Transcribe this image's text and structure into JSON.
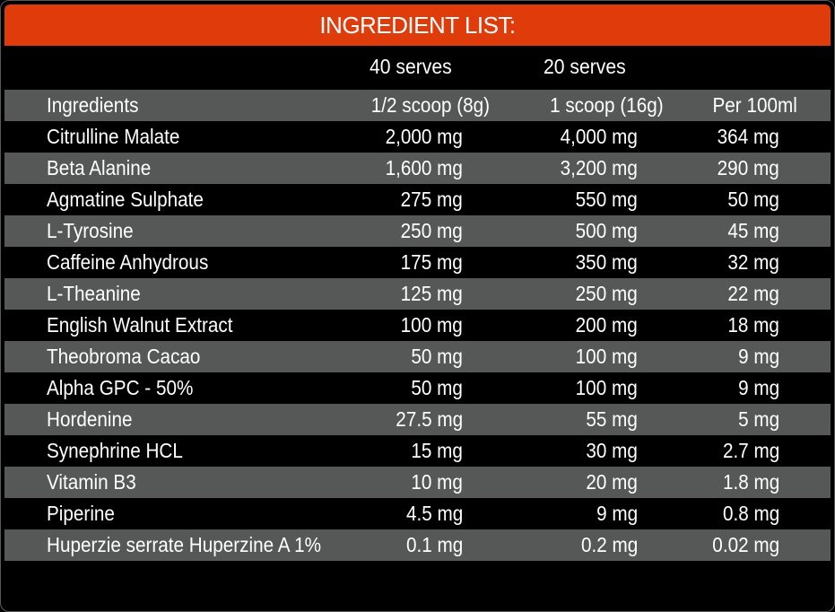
{
  "title": "INGREDIENT LIST:",
  "serves": {
    "col1": "40 serves",
    "col2": "20 serves"
  },
  "header": {
    "name": "Ingredients",
    "col1": "1/2 scoop (8g)",
    "col2": "1 scoop (16g)",
    "col3": "Per 100ml"
  },
  "rows": [
    {
      "name": "Citrulline Malate",
      "col1": "2,000 mg",
      "col2": "4,000 mg",
      "col3": "364 mg"
    },
    {
      "name": "Beta Alanine",
      "col1": "1,600 mg",
      "col2": "3,200 mg",
      "col3": "290 mg"
    },
    {
      "name": "Agmatine Sulphate",
      "col1": "275 mg",
      "col2": "550 mg",
      "col3": "50 mg"
    },
    {
      "name": "L-Tyrosine",
      "col1": "250 mg",
      "col2": "500 mg",
      "col3": "45 mg"
    },
    {
      "name": "Caffeine Anhydrous",
      "col1": "175 mg",
      "col2": "350 mg",
      "col3": "32 mg"
    },
    {
      "name": "L-Theanine",
      "col1": "125 mg",
      "col2": "250 mg",
      "col3": "22 mg"
    },
    {
      "name": "English Walnut Extract",
      "col1": "100 mg",
      "col2": "200 mg",
      "col3": "18 mg"
    },
    {
      "name": "Theobroma Cacao",
      "col1": "50 mg",
      "col2": "100 mg",
      "col3": "9 mg"
    },
    {
      "name": "Alpha GPC - 50%",
      "col1": "50 mg",
      "col2": "100 mg",
      "col3": "9 mg"
    },
    {
      "name": "Hordenine",
      "col1": "27.5 mg",
      "col2": "55 mg",
      "col3": "5 mg"
    },
    {
      "name": "Synephrine HCL",
      "col1": "15 mg",
      "col2": "30 mg",
      "col3": "2.7 mg"
    },
    {
      "name": "Vitamin B3",
      "col1": "10 mg",
      "col2": "20 mg",
      "col3": "1.8 mg"
    },
    {
      "name": "Piperine",
      "col1": "4.5 mg",
      "col2": "9 mg",
      "col3": "0.8 mg"
    },
    {
      "name": "Huperzie serrate Huperzine A 1%",
      "col1": "0.1 mg",
      "col2": "0.2 mg",
      "col3": "0.02 mg"
    }
  ],
  "colors": {
    "header_bar": "#e03c0b",
    "row_gray": "#565857",
    "row_black": "#000000",
    "text": "#ffffff"
  }
}
